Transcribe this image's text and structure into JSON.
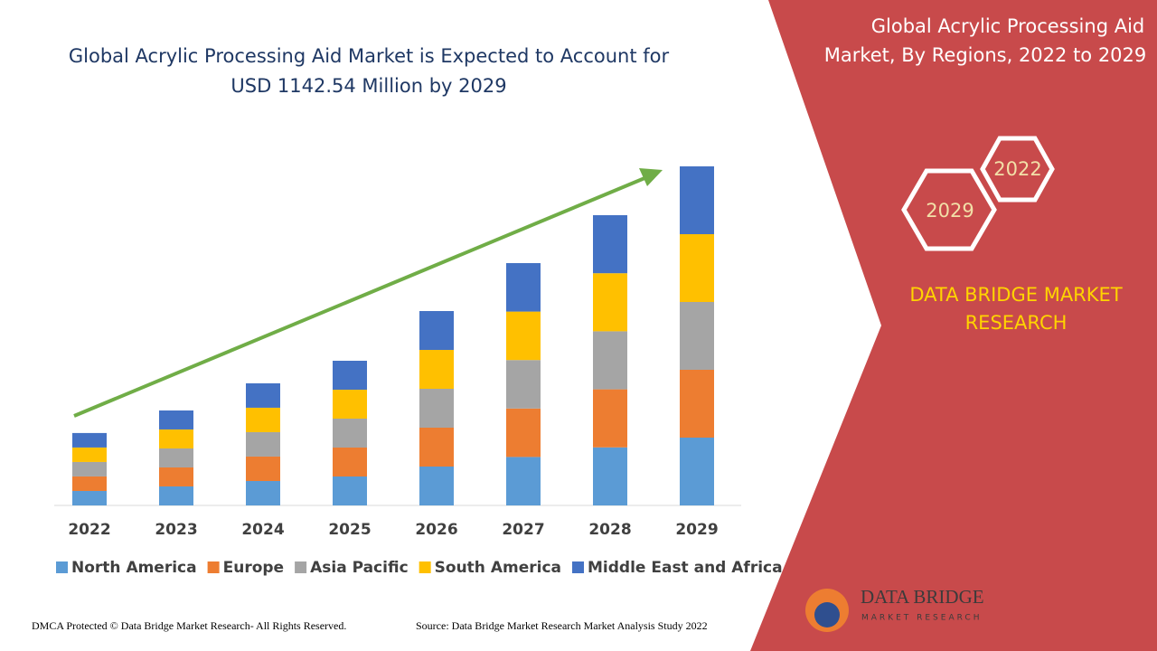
{
  "chart_data": {
    "type": "bar",
    "stacked": true,
    "title": "Global Acrylic Processing Aid Market is Expected to Account for USD 1142.54 Million by 2029",
    "categories": [
      "2022",
      "2023",
      "2024",
      "2025",
      "2026",
      "2027",
      "2028",
      "2029"
    ],
    "series": [
      {
        "name": "North America",
        "color": "#5b9bd5",
        "values": [
          48.8,
          64,
          82.3,
          97.5,
          131,
          163.3,
          195.6,
          228.5
        ]
      },
      {
        "name": "Europe",
        "color": "#ed7d31",
        "values": [
          48.8,
          64,
          82.3,
          97.5,
          131,
          163.3,
          195.6,
          228.5
        ]
      },
      {
        "name": "Asia Pacific",
        "color": "#a5a5a5",
        "values": [
          48.8,
          64,
          82.3,
          97.5,
          131,
          163.3,
          195.6,
          228.5
        ]
      },
      {
        "name": "South America",
        "color": "#ffc000",
        "values": [
          48.8,
          64,
          82.3,
          97.5,
          131,
          163.3,
          195.6,
          228.5
        ]
      },
      {
        "name": "Middle East and Africa",
        "color": "#4472c4",
        "values": [
          48.8,
          64,
          82.3,
          97.5,
          131,
          163.3,
          195.6,
          228.5
        ]
      }
    ]
  },
  "panel": {
    "title": "Global Acrylic Processing Aid Market, By Regions, 2022 to 2029",
    "hexagons": [
      "2022",
      "2029"
    ],
    "brand": "DATA BRIDGE MARKET RESEARCH"
  },
  "logo": {
    "name": "DATA BRIDGE",
    "tagline": "MARKET RESEARCH"
  },
  "footer": {
    "copyright": "DMCA Protected © Data Bridge Market Research- All Rights Reserved.",
    "source": "Source: Data Bridge Market Research Market Analysis Study 2022"
  }
}
